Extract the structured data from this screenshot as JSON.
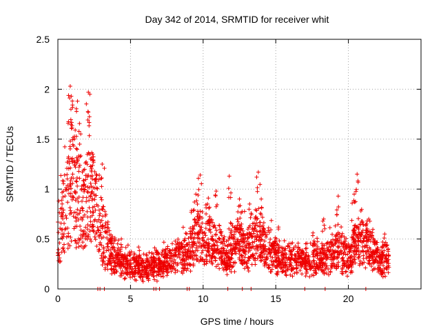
{
  "chart_data": {
    "type": "scatter",
    "title": "Day 342 of 2014, SRMTID for receiver whit",
    "xlabel": "GPS time / hours",
    "ylabel": "SRMTID / TECUs",
    "xlim": [
      0,
      25
    ],
    "ylim": [
      0,
      2.5
    ],
    "grid": true,
    "marker": "plus",
    "color": "#ee0000",
    "x_ticks": [
      0,
      5,
      10,
      15,
      20
    ],
    "x_tick_labels": [
      "0",
      "5",
      "10",
      "15",
      "20"
    ],
    "y_ticks": [
      0,
      0.5,
      1,
      1.5,
      2,
      2.5
    ],
    "y_tick_labels": [
      "0",
      "0.5",
      "1",
      "1.5",
      "2",
      "2.5"
    ],
    "x_range_of_data": [
      0,
      22.8
    ],
    "profile": [
      [
        0.0,
        0.55
      ],
      [
        0.3,
        0.7
      ],
      [
        0.6,
        0.8
      ],
      [
        0.9,
        1.1
      ],
      [
        1.2,
        1.0
      ],
      [
        1.5,
        0.85
      ],
      [
        1.8,
        0.8
      ],
      [
        2.1,
        1.0
      ],
      [
        2.4,
        0.85
      ],
      [
        2.8,
        0.75
      ],
      [
        3.1,
        0.6
      ],
      [
        3.5,
        0.4
      ],
      [
        4.0,
        0.3
      ],
      [
        5.0,
        0.25
      ],
      [
        6.0,
        0.2
      ],
      [
        7.0,
        0.25
      ],
      [
        8.0,
        0.3
      ],
      [
        9.0,
        0.35
      ],
      [
        9.6,
        0.55
      ],
      [
        10.2,
        0.5
      ],
      [
        11.0,
        0.45
      ],
      [
        11.6,
        0.3
      ],
      [
        12.4,
        0.45
      ],
      [
        13.0,
        0.4
      ],
      [
        13.8,
        0.5
      ],
      [
        14.5,
        0.4
      ],
      [
        15.5,
        0.3
      ],
      [
        16.5,
        0.28
      ],
      [
        17.5,
        0.3
      ],
      [
        18.5,
        0.3
      ],
      [
        19.3,
        0.4
      ],
      [
        20.0,
        0.3
      ],
      [
        20.7,
        0.5
      ],
      [
        21.5,
        0.4
      ],
      [
        22.2,
        0.28
      ],
      [
        22.8,
        0.3
      ]
    ],
    "peaks": [
      [
        0.85,
        2.03
      ],
      [
        0.92,
        1.93
      ],
      [
        1.35,
        1.88
      ],
      [
        2.1,
        1.97
      ],
      [
        2.2,
        1.95
      ],
      [
        0.9,
        1.8
      ],
      [
        1.5,
        1.45
      ],
      [
        2.4,
        1.35
      ],
      [
        3.05,
        1.25
      ],
      [
        9.8,
        1.14
      ],
      [
        10.9,
        0.98
      ],
      [
        11.8,
        1.13
      ],
      [
        13.8,
        1.17
      ],
      [
        12.5,
        0.9
      ],
      [
        14.0,
        0.9
      ],
      [
        20.6,
        1.15
      ],
      [
        19.3,
        0.93
      ],
      [
        20.4,
        0.95
      ],
      [
        21.4,
        0.7
      ],
      [
        18.3,
        0.7
      ],
      [
        22.5,
        0.55
      ],
      [
        9.5,
        0.95
      ],
      [
        10.3,
        0.85
      ],
      [
        13.2,
        0.85
      ]
    ],
    "zeros": [
      2.75,
      2.9,
      3.2,
      6.6,
      6.75,
      7.0,
      8.9,
      9.05,
      11.7,
      12.7,
      13.3,
      17.0,
      18.4,
      21.2
    ]
  }
}
